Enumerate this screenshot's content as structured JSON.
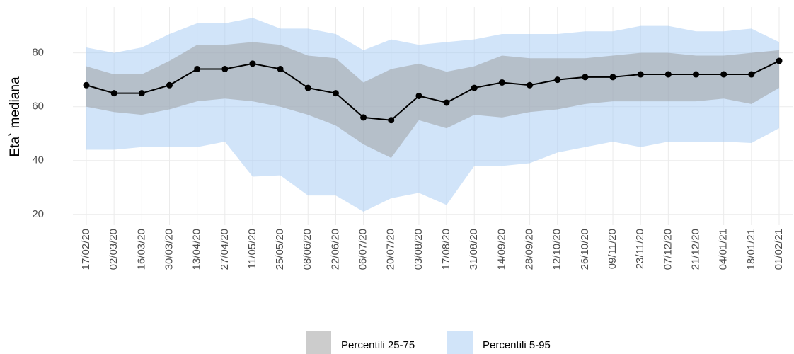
{
  "chart_data": {
    "type": "line",
    "y_label": "Eta` mediana",
    "categories": [
      "17/02/20",
      "02/03/20",
      "16/03/20",
      "30/03/20",
      "13/04/20",
      "27/04/20",
      "11/05/20",
      "25/05/20",
      "08/06/20",
      "22/06/20",
      "06/07/20",
      "20/07/20",
      "03/08/20",
      "17/08/20",
      "31/08/20",
      "14/09/20",
      "28/09/20",
      "12/10/20",
      "26/10/20",
      "09/11/20",
      "23/11/20",
      "07/12/20",
      "21/12/20",
      "04/01/21",
      "18/01/21",
      "01/02/21"
    ],
    "median": {
      "color": "#000000",
      "values": [
        68,
        65,
        65,
        68,
        74,
        74,
        76,
        74,
        67,
        65,
        56,
        55,
        64,
        61.5,
        67,
        69,
        68,
        70,
        71,
        71,
        72,
        72,
        72,
        72,
        72,
        77
      ]
    },
    "bands": [
      {
        "name": "Percentili 25-75",
        "color": "#999999",
        "lower": [
          60,
          58,
          57,
          59,
          62,
          63,
          62,
          60,
          57,
          53,
          46,
          41,
          55,
          52,
          57,
          56,
          58,
          59,
          61,
          62,
          62,
          62,
          62,
          63,
          61,
          67
        ],
        "upper": [
          75,
          72,
          72,
          77,
          83,
          83,
          84,
          83,
          79,
          78,
          69,
          74,
          76,
          73,
          75,
          79,
          78,
          78,
          78,
          79,
          80,
          80,
          79,
          79,
          80,
          81
        ]
      },
      {
        "name": "Percentili 5-95",
        "color": "#a3c9f3",
        "lower": [
          44,
          44,
          45,
          45,
          45,
          47,
          34,
          34.5,
          27,
          27,
          21,
          26,
          28,
          23.5,
          38,
          38,
          39,
          43,
          45,
          47,
          45,
          47,
          47,
          47,
          46.5,
          52
        ],
        "upper": [
          82,
          80,
          82,
          87,
          91,
          91,
          93,
          89,
          89,
          87,
          81,
          85,
          83,
          84,
          85,
          87,
          87,
          87,
          88,
          88,
          90,
          90,
          88,
          88,
          89,
          84
        ]
      }
    ],
    "ylim": [
      16,
      97
    ],
    "yticks": [
      20,
      40,
      60,
      80
    ],
    "grid": true,
    "legend": "bottom"
  }
}
